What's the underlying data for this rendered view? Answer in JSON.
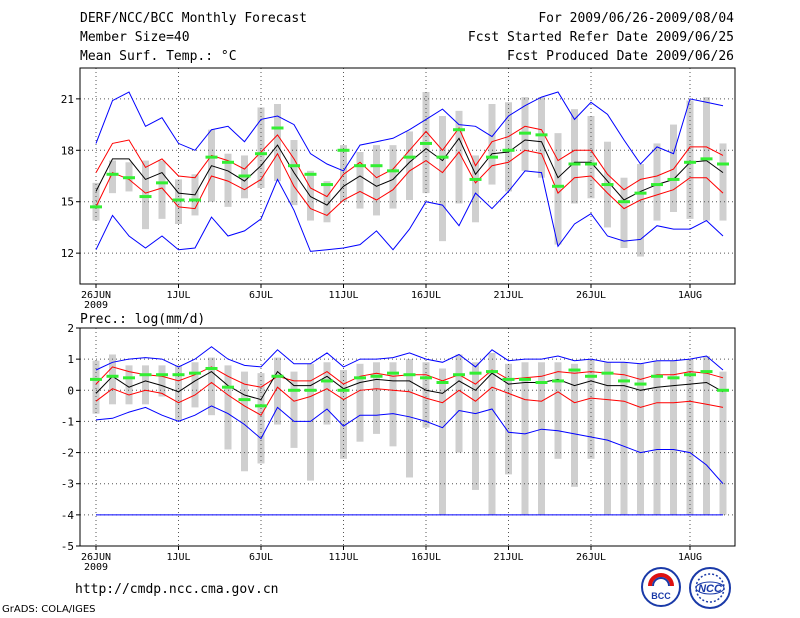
{
  "header": {
    "title": "DERF/NCC/BCC Monthly Forecast",
    "member": "Member Size=40",
    "variable": "Mean Surf. Temp.: °C",
    "period": "For 2009/06/26-2009/08/04",
    "started": "Fcst Started Refer Date 2009/06/25",
    "produced": "Fcst Produced Date 2009/06/26"
  },
  "footer": {
    "url": "http://cmdp.ncc.cma.gov.cn",
    "grads": "GrADS: COLA/IGES",
    "logo_left_text": "BCC",
    "logo_right_text": "NCC"
  },
  "colors": {
    "upper": "#0000ff",
    "lower": "#ff0000",
    "mean": "#000000",
    "member": "#33ee33",
    "bar": "#cfcfcf",
    "grid": "#555555"
  },
  "chart_data": [
    {
      "type": "line",
      "title": "Mean Surf. Temp.: °C",
      "x_tick_labels": [
        "26JUN",
        "1JUL",
        "6JUL",
        "11JUL",
        "16JUL",
        "21JUL",
        "26JUL",
        "1AUG"
      ],
      "x_year_label": "2009",
      "x_tick_index": [
        0,
        5,
        10,
        15,
        20,
        25,
        30,
        36
      ],
      "y_ticks": [
        12,
        15,
        18,
        21
      ],
      "ylim": [
        10.2,
        22.8
      ],
      "days": 39,
      "series": [
        {
          "name": "max",
          "color": "blue",
          "values": [
            18.4,
            20.9,
            21.4,
            19.4,
            19.9,
            18.4,
            18.0,
            19.2,
            19.4,
            18.5,
            19.8,
            20.0,
            19.5,
            17.8,
            17.2,
            16.8,
            18.3,
            18.5,
            18.7,
            19.2,
            19.8,
            20.4,
            19.5,
            19.4,
            18.8,
            20.0,
            20.6,
            21.1,
            21.4,
            19.8,
            20.8,
            20.1,
            18.6,
            17.2,
            18.2,
            17.8,
            21.0,
            20.8,
            20.6
          ]
        },
        {
          "name": "upper",
          "color": "red",
          "values": [
            16.7,
            18.4,
            18.6,
            17.0,
            17.5,
            16.5,
            16.4,
            17.7,
            17.4,
            16.9,
            17.9,
            18.9,
            17.5,
            15.8,
            15.3,
            16.6,
            17.3,
            16.4,
            16.9,
            18.0,
            19.1,
            18.0,
            19.3,
            17.1,
            18.5,
            18.8,
            19.4,
            19.2,
            17.4,
            18.0,
            18.0,
            16.6,
            15.7,
            16.3,
            16.5,
            16.9,
            18.2,
            18.2,
            17.7
          ]
        },
        {
          "name": "mean",
          "color": "black",
          "values": [
            15.6,
            17.5,
            17.5,
            16.3,
            16.7,
            15.5,
            15.4,
            17.1,
            16.8,
            16.2,
            17.1,
            18.3,
            16.7,
            15.3,
            14.8,
            15.9,
            16.5,
            15.9,
            16.3,
            17.3,
            18.1,
            17.4,
            18.7,
            16.6,
            17.8,
            17.9,
            18.6,
            18.5,
            16.4,
            17.3,
            17.3,
            16.2,
            15.1,
            15.6,
            16.0,
            16.3,
            17.3,
            17.4,
            16.7
          ]
        },
        {
          "name": "lower",
          "color": "red",
          "values": [
            14.7,
            16.7,
            16.3,
            15.5,
            15.8,
            14.7,
            14.6,
            16.5,
            16.2,
            15.7,
            16.3,
            17.8,
            15.9,
            14.6,
            14.2,
            15.1,
            15.6,
            15.1,
            15.7,
            16.8,
            17.4,
            16.7,
            17.9,
            16.1,
            17.1,
            17.3,
            18.0,
            17.8,
            15.5,
            16.4,
            16.5,
            15.5,
            14.6,
            15.1,
            15.4,
            15.7,
            16.4,
            16.4,
            15.5
          ]
        },
        {
          "name": "min",
          "color": "blue",
          "values": [
            12.2,
            14.2,
            13.0,
            12.3,
            13.0,
            12.2,
            12.3,
            14.1,
            13.0,
            13.3,
            14.0,
            16.3,
            14.5,
            12.1,
            12.2,
            12.3,
            12.5,
            13.3,
            12.2,
            13.4,
            15.0,
            14.8,
            13.6,
            15.5,
            14.6,
            15.6,
            16.8,
            16.7,
            12.4,
            13.7,
            14.3,
            13.0,
            12.7,
            12.8,
            13.6,
            13.4,
            13.4,
            13.9,
            13.0
          ]
        },
        {
          "name": "member",
          "color": "green",
          "values": [
            14.7,
            16.6,
            16.4,
            15.3,
            16.1,
            15.1,
            15.1,
            17.6,
            17.3,
            16.5,
            17.8,
            19.3,
            17.1,
            16.6,
            16.0,
            18.0,
            17.1,
            17.1,
            16.8,
            17.6,
            18.4,
            17.6,
            19.2,
            16.3,
            17.6,
            18.0,
            19.0,
            18.9,
            15.9,
            17.2,
            17.2,
            16.0,
            15.0,
            15.5,
            16.0,
            16.3,
            17.3,
            17.5,
            17.2
          ]
        },
        {
          "name": "range_low",
          "color": "gray",
          "values": [
            13.9,
            15.5,
            15.6,
            13.4,
            14.0,
            13.7,
            14.2,
            15.0,
            14.7,
            15.2,
            15.8,
            16.2,
            14.8,
            13.9,
            13.8,
            15.0,
            14.6,
            14.2,
            14.6,
            15.1,
            15.5,
            12.7,
            14.9,
            13.8,
            16.0,
            15.6,
            16.8,
            16.4,
            12.5,
            14.9,
            15.2,
            13.5,
            12.3,
            11.8,
            13.9,
            14.4,
            14.0,
            13.9,
            13.9
          ]
        },
        {
          "name": "range_high",
          "color": "gray",
          "values": [
            16.1,
            17.4,
            17.3,
            17.4,
            17.4,
            16.3,
            16.6,
            19.2,
            17.8,
            17.7,
            20.5,
            20.7,
            18.6,
            16.8,
            16.2,
            18.3,
            17.9,
            18.3,
            18.3,
            19.1,
            21.4,
            20.0,
            20.3,
            17.7,
            20.7,
            20.8,
            21.1,
            21.1,
            19.0,
            20.4,
            20.0,
            18.5,
            16.4,
            17.2,
            18.4,
            19.5,
            20.9,
            21.1,
            18.4
          ]
        }
      ]
    },
    {
      "type": "line",
      "title": "Prec.: log(mm/d)",
      "x_tick_labels": [
        "26JUN",
        "1JUL",
        "6JUL",
        "11JUL",
        "16JUL",
        "21JUL",
        "26JUL",
        "1AUG"
      ],
      "x_year_label": "2009",
      "x_tick_index": [
        0,
        5,
        10,
        15,
        20,
        25,
        30,
        36
      ],
      "y_ticks": [
        -5,
        -4,
        -3,
        -2,
        -1,
        0,
        1,
        2
      ],
      "ylim": [
        -5,
        2
      ],
      "days": 39,
      "series": [
        {
          "name": "max",
          "color": "blue",
          "values": [
            0.65,
            0.9,
            1.0,
            1.05,
            1.0,
            0.75,
            1.0,
            1.4,
            1.0,
            0.8,
            0.75,
            1.3,
            0.85,
            0.85,
            1.2,
            0.75,
            1.0,
            1.0,
            1.05,
            1.2,
            1.0,
            0.9,
            1.15,
            0.75,
            1.3,
            0.95,
            1.0,
            1.0,
            1.1,
            0.95,
            1.0,
            0.9,
            0.9,
            0.85,
            0.95,
            0.95,
            1.0,
            1.1,
            0.65
          ]
        },
        {
          "name": "upper",
          "color": "red",
          "values": [
            0.2,
            0.75,
            0.6,
            0.5,
            0.45,
            0.3,
            0.5,
            0.75,
            0.45,
            0.2,
            0.1,
            0.45,
            0.3,
            0.3,
            0.6,
            0.2,
            0.45,
            0.55,
            0.45,
            0.5,
            0.5,
            0.3,
            0.5,
            0.2,
            0.65,
            0.35,
            0.4,
            0.45,
            0.6,
            0.55,
            0.6,
            0.55,
            0.5,
            0.35,
            0.5,
            0.5,
            0.6,
            0.55,
            0.4
          ]
        },
        {
          "name": "mean",
          "color": "black",
          "values": [
            -0.1,
            0.45,
            0.1,
            0.3,
            0.15,
            -0.05,
            0.3,
            0.6,
            0.15,
            -0.15,
            -0.3,
            0.6,
            0.15,
            0.15,
            0.45,
            0.05,
            0.25,
            0.35,
            0.3,
            0.3,
            0.0,
            -0.1,
            0.3,
            0.0,
            0.55,
            0.2,
            0.25,
            0.25,
            0.35,
            0.15,
            0.3,
            0.15,
            0.15,
            0.0,
            0.1,
            0.15,
            0.2,
            0.25,
            -0.05
          ]
        },
        {
          "name": "lower",
          "color": "red",
          "values": [
            -0.35,
            0.05,
            -0.15,
            0.0,
            -0.1,
            -0.4,
            -0.15,
            0.25,
            -0.15,
            -0.5,
            -0.8,
            0.1,
            -0.35,
            -0.2,
            0.05,
            -0.3,
            0.0,
            0.05,
            0.0,
            -0.05,
            -0.25,
            -0.4,
            0.0,
            -0.35,
            0.1,
            -0.1,
            -0.3,
            -0.35,
            -0.05,
            -0.4,
            -0.25,
            -0.3,
            -0.35,
            -0.55,
            -0.4,
            -0.4,
            -0.35,
            -0.45,
            -0.55
          ]
        },
        {
          "name": "min",
          "color": "blue",
          "values": [
            -0.95,
            -0.9,
            -0.7,
            -0.55,
            -0.8,
            -1.0,
            -0.8,
            -0.5,
            -0.75,
            -1.1,
            -1.55,
            -0.55,
            -1.0,
            -1.0,
            -0.6,
            -1.15,
            -0.8,
            -0.8,
            -0.75,
            -0.85,
            -1.0,
            -1.2,
            -0.65,
            -0.75,
            -0.6,
            -1.35,
            -1.4,
            -1.25,
            -1.3,
            -1.4,
            -1.5,
            -1.6,
            -1.8,
            -2.0,
            -1.9,
            -1.9,
            -2.0,
            -2.4,
            -3.0
          ]
        },
        {
          "name": "member",
          "color": "green",
          "values": [
            0.35,
            0.45,
            0.4,
            0.5,
            0.5,
            0.5,
            0.55,
            0.7,
            0.1,
            -0.3,
            -0.5,
            0.45,
            0.0,
            0.0,
            0.3,
            0.0,
            0.4,
            0.45,
            0.55,
            0.5,
            0.4,
            0.25,
            0.5,
            0.55,
            0.6,
            0.35,
            0.35,
            0.25,
            0.3,
            0.65,
            0.45,
            0.55,
            0.3,
            0.2,
            0.45,
            0.4,
            0.5,
            0.6,
            0.0
          ]
        },
        {
          "name": "range_low",
          "color": "gray",
          "values": [
            -0.75,
            -0.45,
            -0.45,
            -0.45,
            -0.2,
            -0.95,
            -0.55,
            -0.8,
            -1.9,
            -2.6,
            -2.35,
            -1.1,
            -1.85,
            -2.9,
            -1.1,
            -2.2,
            -1.65,
            -1.4,
            -1.8,
            -2.8,
            -1.2,
            -4.0,
            -2.0,
            -3.2,
            -4.0,
            -2.7,
            -4.0,
            -4.0,
            -2.2,
            -3.1,
            -2.2,
            -4.0,
            -4.0,
            -4.0,
            -4.0,
            -4.0,
            -4.0,
            -4.0,
            -4.0
          ]
        },
        {
          "name": "range_high",
          "color": "gray",
          "values": [
            0.95,
            1.15,
            0.8,
            0.8,
            0.8,
            0.8,
            0.9,
            1.05,
            0.8,
            0.6,
            0.55,
            1.05,
            0.6,
            0.85,
            0.9,
            0.65,
            0.85,
            0.9,
            0.9,
            1.0,
            0.9,
            0.7,
            1.15,
            0.9,
            1.2,
            0.85,
            0.9,
            0.9,
            0.9,
            0.85,
            1.0,
            0.9,
            0.9,
            0.85,
            0.95,
            0.95,
            1.0,
            1.1,
            0.6
          ]
        }
      ]
    }
  ]
}
